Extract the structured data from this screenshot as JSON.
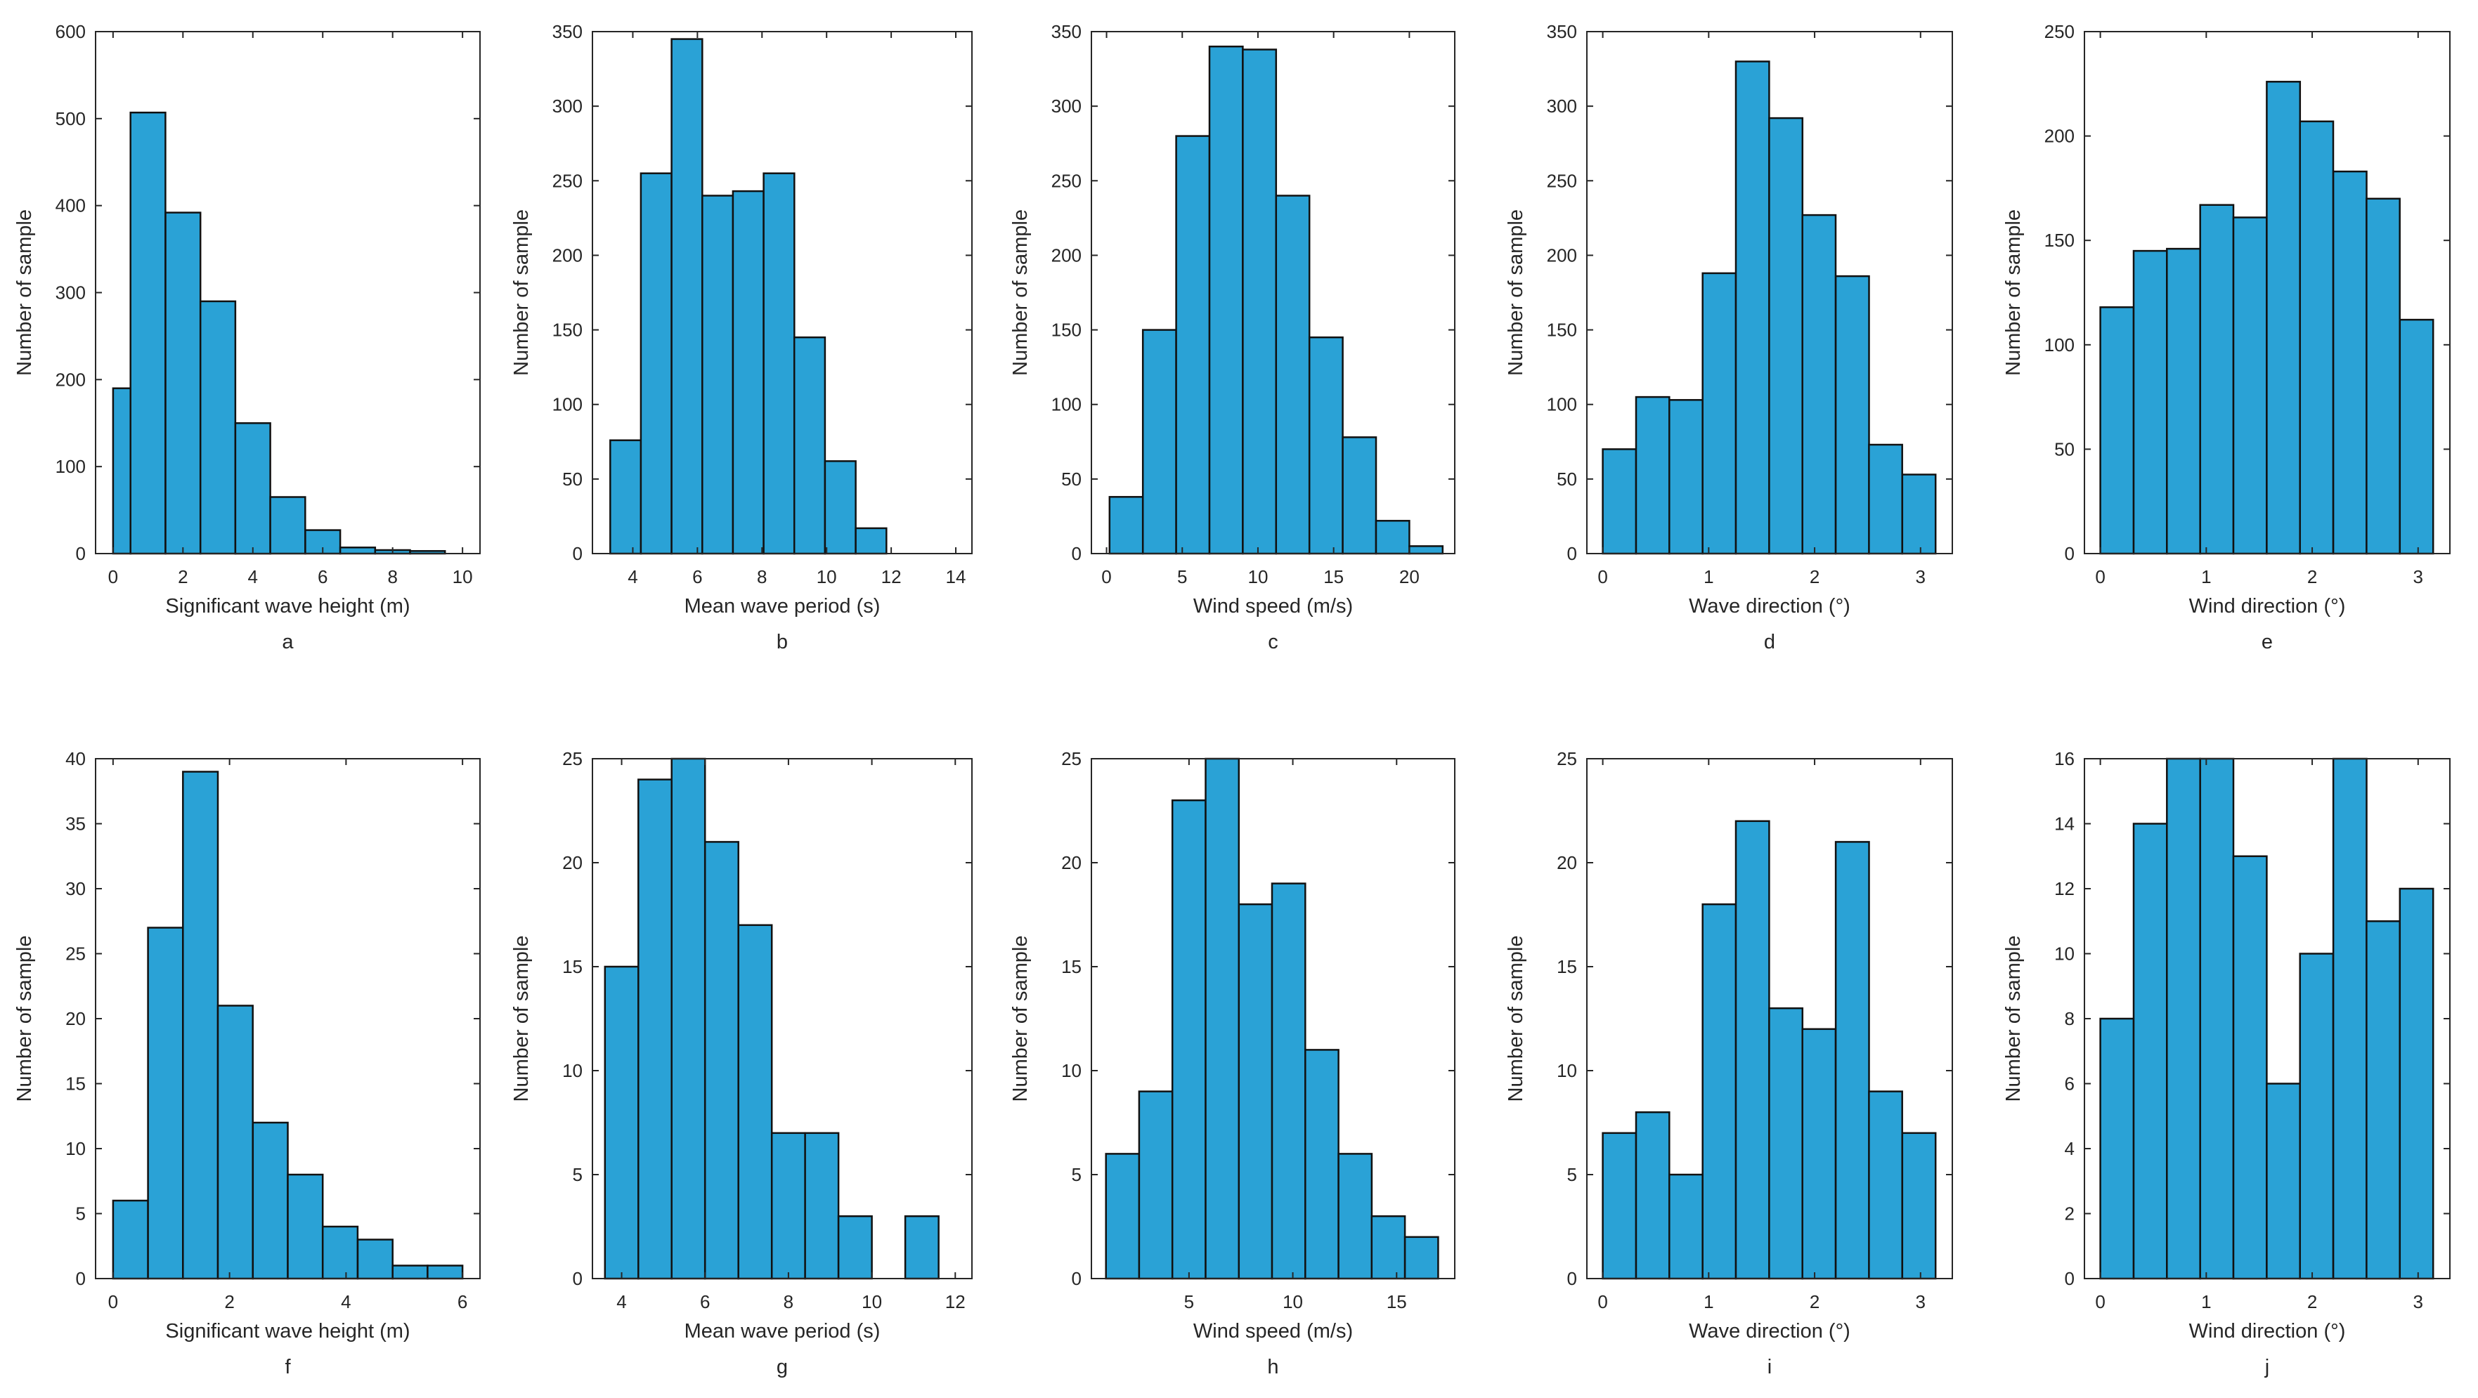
{
  "colors": {
    "bar": "#2aa2d6",
    "bar_edge": "#111111",
    "axis": "#262626"
  },
  "chart_data": [
    {
      "id": "a",
      "type": "bar",
      "caption": "a",
      "xlabel": "Significant wave height (m)",
      "ylabel": "Number of sample",
      "xlim": [
        -0.5,
        10.5
      ],
      "ylim": [
        0,
        600
      ],
      "xticks": [
        0,
        2,
        4,
        6,
        8,
        10
      ],
      "yticks": [
        0,
        100,
        200,
        300,
        400,
        500,
        600
      ],
      "bin_edges": [
        0,
        0.5,
        1.5,
        2.5,
        3.5,
        4.5,
        5.5,
        6.5,
        7.5,
        8.5,
        9.5
      ],
      "values": [
        190,
        507,
        392,
        290,
        150,
        65,
        27,
        7,
        4,
        3
      ]
    },
    {
      "id": "b",
      "type": "bar",
      "caption": "b",
      "xlabel": "Mean wave period (s)",
      "ylabel": "Number of sample",
      "xlim": [
        2.75,
        14.5
      ],
      "ylim": [
        0,
        350
      ],
      "xticks": [
        4,
        6,
        8,
        10,
        12,
        14
      ],
      "yticks": [
        0,
        50,
        100,
        150,
        200,
        250,
        300,
        350
      ],
      "bin_edges": [
        3.3,
        4.25,
        5.2,
        6.15,
        7.1,
        8.05,
        9.0,
        9.95,
        10.9,
        11.85,
        12.8
      ],
      "values": [
        76,
        255,
        345,
        240,
        243,
        255,
        145,
        62,
        17,
        0
      ]
    },
    {
      "id": "c",
      "type": "bar",
      "caption": "c",
      "xlabel": "Wind speed (m/s)",
      "ylabel": "Number of sample",
      "xlim": [
        -1,
        23
      ],
      "ylim": [
        0,
        350
      ],
      "xticks": [
        0,
        5,
        10,
        15,
        20
      ],
      "yticks": [
        0,
        50,
        100,
        150,
        200,
        250,
        300,
        350
      ],
      "bin_edges": [
        0.2,
        2.4,
        4.6,
        6.8,
        9.0,
        11.2,
        13.4,
        15.6,
        17.8,
        20.0,
        22.2
      ],
      "values": [
        38,
        150,
        280,
        340,
        338,
        240,
        145,
        78,
        22,
        5
      ]
    },
    {
      "id": "d",
      "type": "bar",
      "caption": "d",
      "xlabel": "Wave direction (°)",
      "ylabel": "Number of sample",
      "xlim": [
        -0.15,
        3.3
      ],
      "ylim": [
        0,
        350
      ],
      "xticks": [
        0,
        1,
        2,
        3
      ],
      "yticks": [
        0,
        50,
        100,
        150,
        200,
        250,
        300,
        350
      ],
      "bin_edges": [
        0,
        0.3142,
        0.6283,
        0.9425,
        1.2566,
        1.5708,
        1.885,
        2.1991,
        2.5133,
        2.8274,
        3.1416
      ],
      "values": [
        70,
        105,
        103,
        188,
        330,
        292,
        227,
        186,
        73,
        53
      ]
    },
    {
      "id": "e",
      "type": "bar",
      "caption": "e",
      "xlabel": "Wind direction (°)",
      "ylabel": "Number of sample",
      "xlim": [
        -0.15,
        3.3
      ],
      "ylim": [
        0,
        250
      ],
      "xticks": [
        0,
        1,
        2,
        3
      ],
      "yticks": [
        0,
        50,
        100,
        150,
        200,
        250
      ],
      "bin_edges": [
        0,
        0.3142,
        0.6283,
        0.9425,
        1.2566,
        1.5708,
        1.885,
        2.1991,
        2.5133,
        2.8274,
        3.1416
      ],
      "values": [
        118,
        145,
        146,
        167,
        161,
        226,
        207,
        183,
        170,
        112
      ]
    },
    {
      "id": "f",
      "type": "bar",
      "caption": "f",
      "xlabel": "Significant wave height (m)",
      "ylabel": "Number of sample",
      "xlim": [
        -0.3,
        6.3
      ],
      "ylim": [
        0,
        40
      ],
      "xticks": [
        0,
        2,
        4,
        6
      ],
      "yticks": [
        0,
        5,
        10,
        15,
        20,
        25,
        30,
        35,
        40
      ],
      "bin_edges": [
        0,
        0.6,
        1.2,
        1.8,
        2.4,
        3.0,
        3.6,
        4.2,
        4.8,
        5.4,
        6.0
      ],
      "values": [
        6,
        27,
        39,
        21,
        12,
        8,
        4,
        3,
        1,
        1
      ]
    },
    {
      "id": "g",
      "type": "bar",
      "caption": "g",
      "xlabel": "Mean wave period (s)",
      "ylabel": "Number of sample",
      "xlim": [
        3.3,
        12.4
      ],
      "ylim": [
        0,
        25
      ],
      "xticks": [
        4,
        6,
        8,
        10,
        12
      ],
      "yticks": [
        0,
        5,
        10,
        15,
        20,
        25
      ],
      "bin_edges": [
        3.6,
        4.4,
        5.2,
        6.0,
        6.8,
        7.6,
        8.4,
        9.2,
        10.0,
        10.8,
        11.6
      ],
      "values": [
        15,
        24,
        25,
        21,
        17,
        7,
        7,
        3,
        0,
        3
      ]
    },
    {
      "id": "h",
      "type": "bar",
      "caption": "h",
      "xlabel": "Wind speed (m/s)",
      "ylabel": "Number of sample",
      "xlim": [
        0.3,
        17.8
      ],
      "ylim": [
        0,
        25
      ],
      "xticks": [
        5,
        10,
        15
      ],
      "yticks": [
        0,
        5,
        10,
        15,
        20,
        25
      ],
      "bin_edges": [
        1.0,
        2.6,
        4.2,
        5.8,
        7.4,
        9.0,
        10.6,
        12.2,
        13.8,
        15.4,
        17.0
      ],
      "values": [
        6,
        9,
        23,
        25,
        18,
        19,
        11,
        6,
        3,
        2
      ]
    },
    {
      "id": "i",
      "type": "bar",
      "caption": "i",
      "xlabel": "Wave direction (°)",
      "ylabel": "Number of sample",
      "xlim": [
        -0.15,
        3.3
      ],
      "ylim": [
        0,
        25
      ],
      "xticks": [
        0,
        1,
        2,
        3
      ],
      "yticks": [
        0,
        5,
        10,
        15,
        20,
        25
      ],
      "bin_edges": [
        0,
        0.3142,
        0.6283,
        0.9425,
        1.2566,
        1.5708,
        1.885,
        2.1991,
        2.5133,
        2.8274,
        3.1416
      ],
      "values": [
        7,
        8,
        5,
        18,
        22,
        13,
        12,
        21,
        9,
        7
      ]
    },
    {
      "id": "j",
      "type": "bar",
      "caption": "j",
      "xlabel": "Wind direction (°)",
      "ylabel": "Number of sample",
      "xlim": [
        -0.15,
        3.3
      ],
      "ylim": [
        0,
        16
      ],
      "xticks": [
        0,
        1,
        2,
        3
      ],
      "yticks": [
        0,
        2,
        4,
        6,
        8,
        10,
        12,
        14,
        16
      ],
      "bin_edges": [
        0,
        0.3142,
        0.6283,
        0.9425,
        1.2566,
        1.5708,
        1.885,
        2.1991,
        2.5133,
        2.8274,
        3.1416
      ],
      "values": [
        8,
        14,
        16,
        16,
        13,
        6,
        10,
        16,
        11,
        12
      ]
    }
  ]
}
